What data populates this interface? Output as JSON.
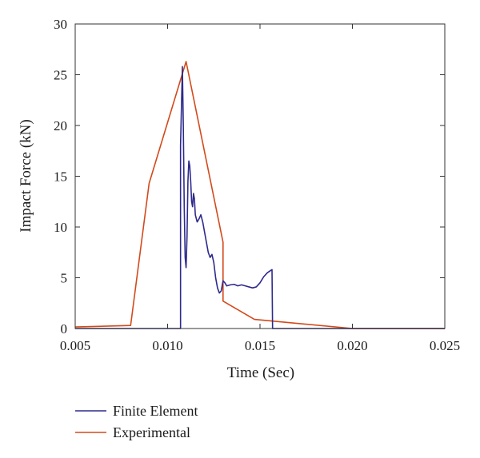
{
  "chart_data": {
    "type": "line",
    "title": "",
    "xlabel": "Time (Sec)",
    "ylabel": "Impact Force (kN)",
    "xlim": [
      0.005,
      0.025
    ],
    "ylim": [
      0,
      30
    ],
    "xticks": [
      0.005,
      0.01,
      0.015,
      0.02,
      0.025
    ],
    "xtick_labels": [
      "0.005",
      "0.010",
      "0.015",
      "0.020",
      "0.025"
    ],
    "yticks": [
      0,
      5,
      10,
      15,
      20,
      25,
      30
    ],
    "ytick_labels": [
      "0",
      "5",
      "10",
      "15",
      "20",
      "25",
      "30"
    ],
    "grid": false,
    "legend_position": "bottom-left below plot",
    "series": [
      {
        "name": "Finite Element",
        "color": "#2e2a8c",
        "points": [
          [
            0.005,
            0.0
          ],
          [
            0.0107,
            0.0
          ],
          [
            0.0107,
            18.0
          ],
          [
            0.0108,
            25.8
          ],
          [
            0.01085,
            20.0
          ],
          [
            0.0109,
            12.0
          ],
          [
            0.01095,
            7.0
          ],
          [
            0.011,
            6.0
          ],
          [
            0.01105,
            9.0
          ],
          [
            0.0111,
            14.5
          ],
          [
            0.01115,
            16.5
          ],
          [
            0.0112,
            16.0
          ],
          [
            0.01125,
            14.5
          ],
          [
            0.0113,
            12.5
          ],
          [
            0.01135,
            12.0
          ],
          [
            0.0114,
            13.3
          ],
          [
            0.01145,
            12.8
          ],
          [
            0.0115,
            11.2
          ],
          [
            0.0116,
            10.5
          ],
          [
            0.0117,
            10.8
          ],
          [
            0.0118,
            11.2
          ],
          [
            0.0119,
            10.5
          ],
          [
            0.012,
            9.5
          ],
          [
            0.0121,
            8.5
          ],
          [
            0.0122,
            7.5
          ],
          [
            0.0123,
            7.0
          ],
          [
            0.0124,
            7.3
          ],
          [
            0.0125,
            6.5
          ],
          [
            0.0126,
            5.0
          ],
          [
            0.0127,
            4.0
          ],
          [
            0.0128,
            3.5
          ],
          [
            0.0129,
            3.7
          ],
          [
            0.013,
            4.7
          ],
          [
            0.0131,
            4.5
          ],
          [
            0.0132,
            4.2
          ],
          [
            0.0134,
            4.3
          ],
          [
            0.0136,
            4.35
          ],
          [
            0.0138,
            4.2
          ],
          [
            0.014,
            4.3
          ],
          [
            0.0142,
            4.2
          ],
          [
            0.0144,
            4.1
          ],
          [
            0.0146,
            4.0
          ],
          [
            0.0148,
            4.1
          ],
          [
            0.015,
            4.5
          ],
          [
            0.0152,
            5.1
          ],
          [
            0.0154,
            5.5
          ],
          [
            0.01565,
            5.8
          ],
          [
            0.01568,
            0.0
          ],
          [
            0.025,
            0.0
          ]
        ]
      },
      {
        "name": "Experimental",
        "color": "#d24a1c",
        "points": [
          [
            0.005,
            0.15
          ],
          [
            0.008,
            0.3
          ],
          [
            0.009,
            14.3
          ],
          [
            0.011,
            26.3
          ],
          [
            0.013,
            8.5
          ],
          [
            0.013,
            2.7
          ],
          [
            0.0147,
            0.9
          ],
          [
            0.02,
            0.0
          ],
          [
            0.025,
            0.0
          ]
        ]
      }
    ]
  }
}
